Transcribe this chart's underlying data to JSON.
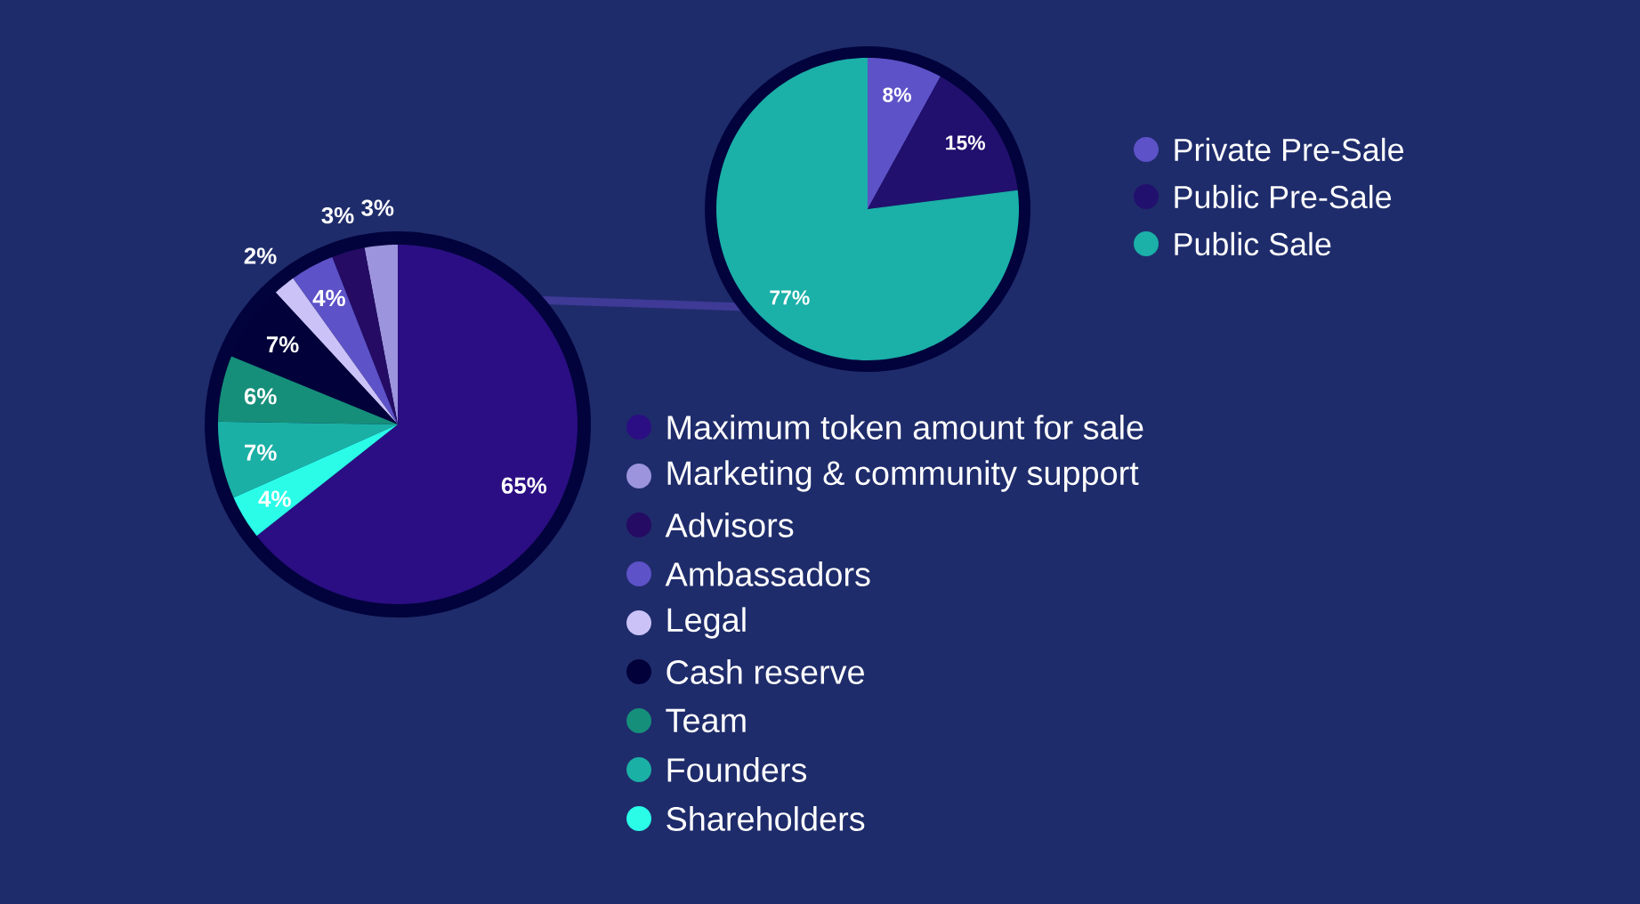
{
  "chart_data": [
    {
      "type": "pie",
      "categories": [
        "Maximum token amount for sale",
        "Marketing & community support",
        "Advisors",
        "Ambassadors",
        "Legal",
        "Cash reserve",
        "Team",
        "Founders",
        "Shareholders"
      ],
      "values": [
        65,
        3,
        3,
        4,
        2,
        7,
        6,
        7,
        4
      ],
      "colors": [
        "#2b0e83",
        "#9c94dc",
        "#250b64",
        "#5d52c8",
        "#cbc3f7",
        "#02013a",
        "#168f7a",
        "#1bb0a5",
        "#2afce8"
      ],
      "value_labels": [
        "65%",
        "3%",
        "3%",
        "4%",
        "2%",
        "7%",
        "6%",
        "7%",
        "4%"
      ],
      "legend": "right"
    },
    {
      "type": "pie",
      "categories": [
        "Private Pre-Sale",
        "Public Pre-Sale",
        "Public Sale"
      ],
      "values": [
        8,
        15,
        77
      ],
      "colors": [
        "#5d52c8",
        "#22106e",
        "#1bb0a8"
      ],
      "value_labels": [
        "8%",
        "15%",
        "77%"
      ],
      "legend": "right"
    }
  ]
}
